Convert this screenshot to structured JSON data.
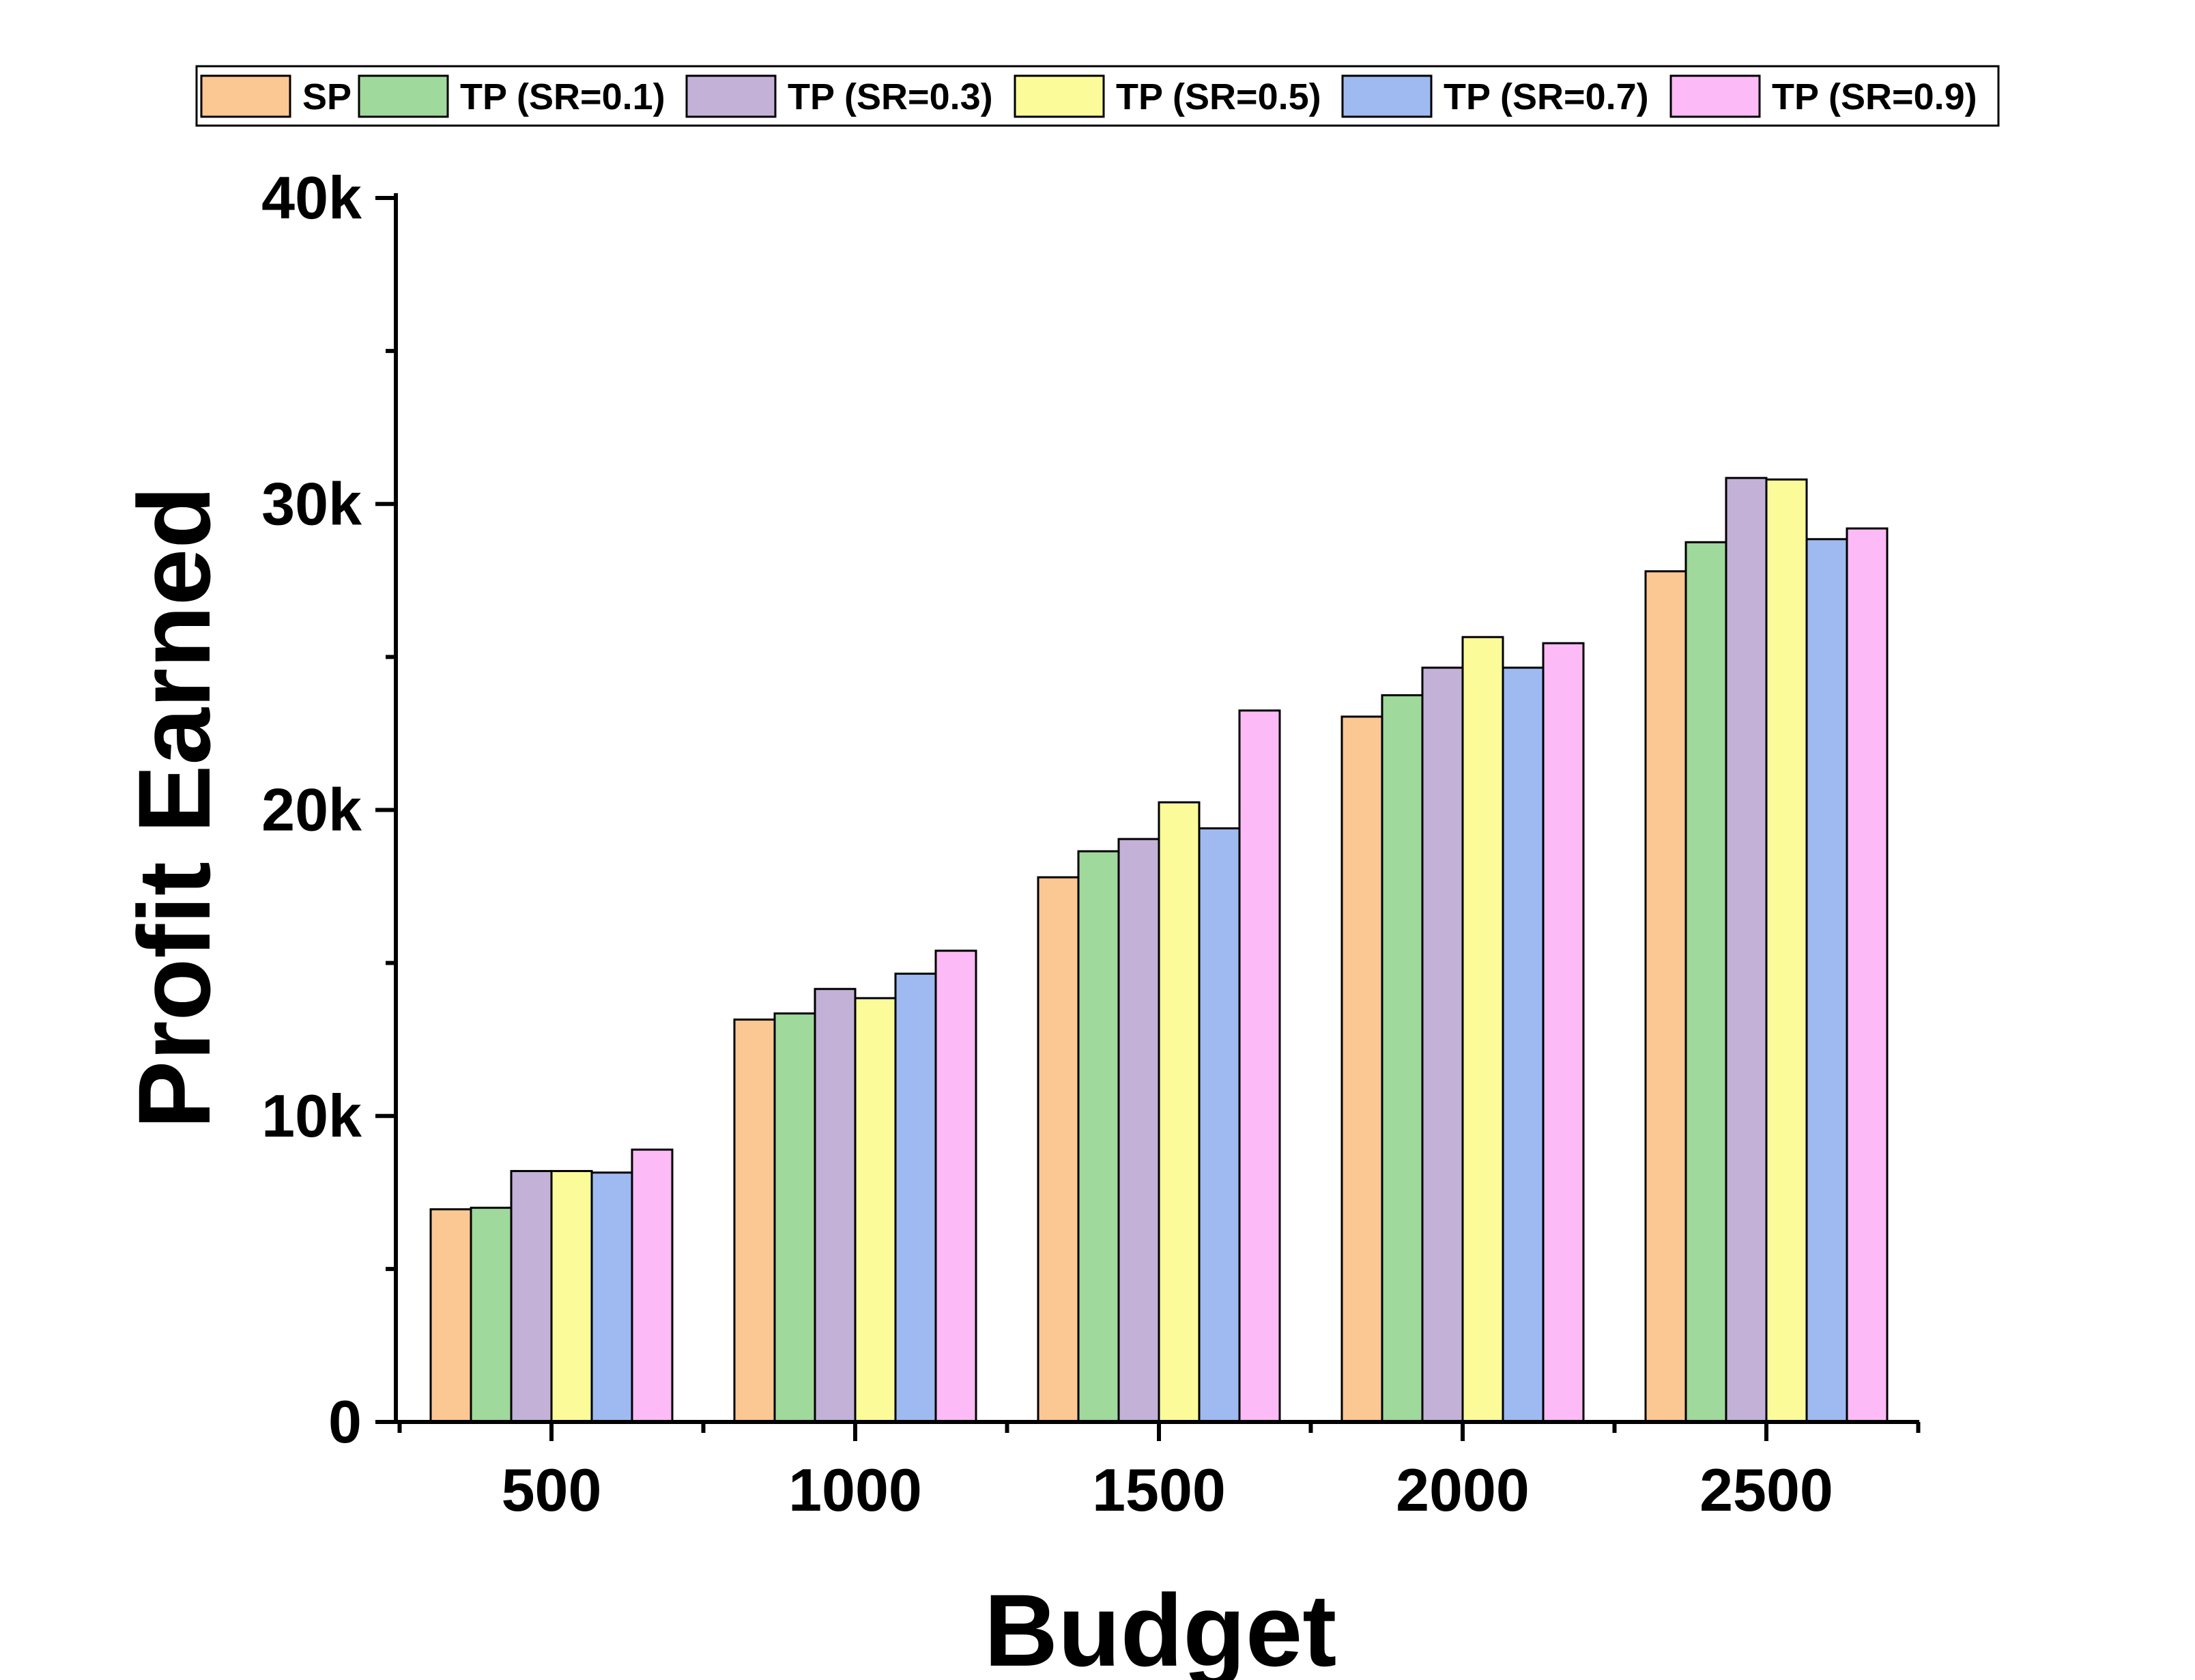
{
  "chart_data": {
    "type": "bar",
    "xlabel": "Budget",
    "ylabel": "Profit Earned",
    "categories": [
      "500",
      "1000",
      "1500",
      "2000",
      "2500"
    ],
    "ylim": [
      0,
      40000
    ],
    "yticks": [
      0,
      10000,
      20000,
      30000,
      40000
    ],
    "ytick_labels": [
      "0",
      "10k",
      "20k",
      "30k",
      "40k"
    ],
    "legend_position": "top",
    "grid": false,
    "series": [
      {
        "name": "SP",
        "color": "#FBC793",
        "values": [
          6950,
          13150,
          17800,
          23050,
          27800
        ]
      },
      {
        "name": "TP (SR=0.1)",
        "color": "#9FD99B",
        "values": [
          7000,
          13350,
          18650,
          23750,
          28750
        ]
      },
      {
        "name": "TP (SR=0.3)",
        "color": "#C3B1D8",
        "values": [
          8200,
          14150,
          19050,
          24650,
          30850
        ]
      },
      {
        "name": "TP (SR=0.5)",
        "color": "#FCFB9A",
        "values": [
          8200,
          13850,
          20250,
          25650,
          30800
        ]
      },
      {
        "name": "TP (SR=0.7)",
        "color": "#9EBAF1",
        "values": [
          8150,
          14650,
          19400,
          24650,
          28850
        ]
      },
      {
        "name": "TP (SR=0.9)",
        "color": "#FCBAF6",
        "values": [
          8900,
          15400,
          23250,
          25450,
          29200
        ]
      }
    ]
  }
}
